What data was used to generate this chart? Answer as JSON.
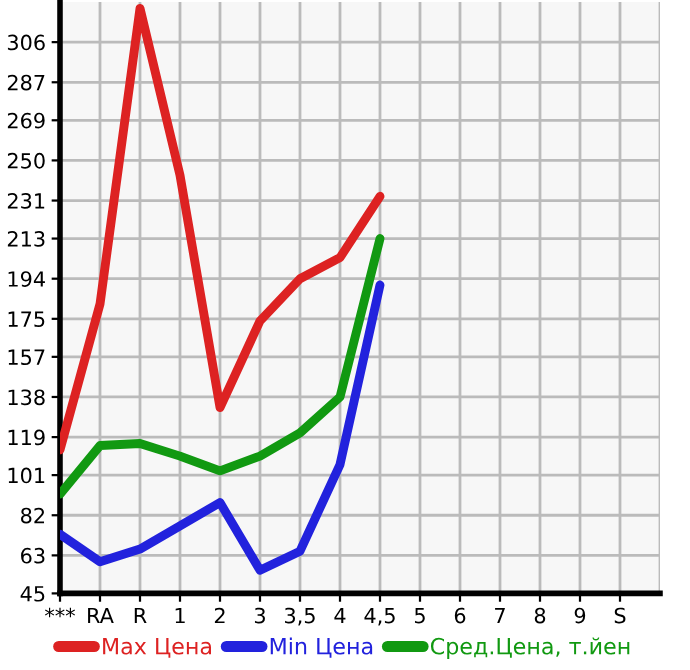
{
  "chart_data": {
    "type": "line",
    "categories": [
      "***",
      "RA",
      "R",
      "1",
      "2",
      "3",
      "3,5",
      "4",
      "4,5",
      "5",
      "6",
      "7",
      "8",
      "9",
      "S"
    ],
    "series": [
      {
        "name": "Max Цена",
        "color": "#dd2222",
        "values": [
          113,
          182,
          322,
          243,
          133,
          174,
          194,
          204,
          233,
          null,
          null,
          null,
          null,
          null,
          null
        ]
      },
      {
        "name": "Min Цена",
        "color": "#2222dd",
        "values": [
          73,
          60,
          66,
          77,
          88,
          56,
          65,
          106,
          191,
          null,
          null,
          null,
          null,
          null,
          null
        ]
      },
      {
        "name": "Сред.Цена, т.йен",
        "color": "#119911",
        "values": [
          92,
          115,
          116,
          110,
          103,
          110,
          121,
          138,
          213,
          null,
          null,
          null,
          null,
          null,
          null
        ]
      }
    ],
    "ylim": [
      45,
      325
    ],
    "yticks": [
      45,
      63,
      82,
      101,
      119,
      138,
      157,
      175,
      194,
      213,
      231,
      250,
      269,
      287,
      306
    ],
    "grid": true,
    "legend": "bottom",
    "marker": "none",
    "line_style": "solid"
  }
}
